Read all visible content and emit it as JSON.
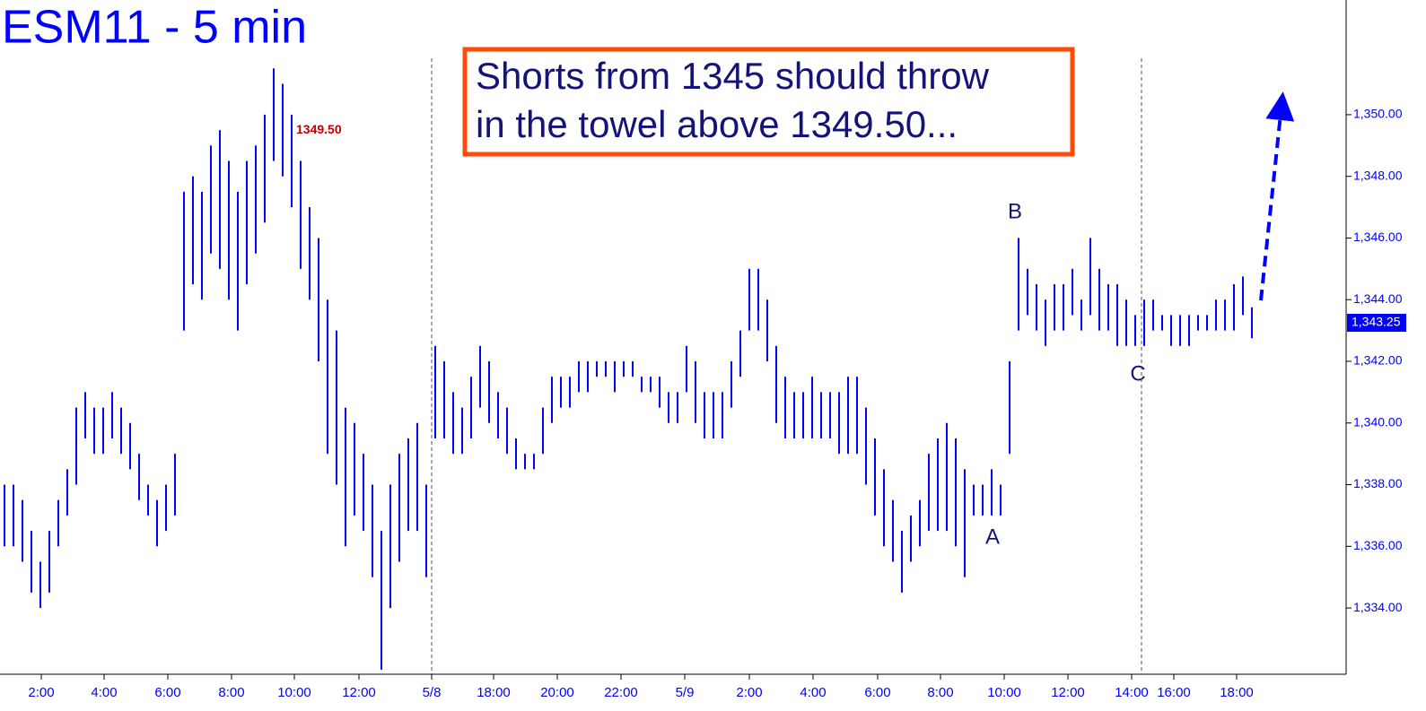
{
  "chart_data": {
    "type": "range_bar",
    "title": "ESM11 - 5 min",
    "callout": [
      "Shorts from 1345 should throw",
      "in the towel above 1349.50..."
    ],
    "price_label": {
      "value": 1349.5,
      "label": "1349.50"
    },
    "last_price": {
      "value": 1343.25,
      "label": "1,343.25"
    },
    "wave_labels": [
      "A",
      "B",
      "C"
    ],
    "color": "#0000ff",
    "high": [
      1338,
      1338,
      1337.5,
      1336.5,
      1335.5,
      1336.5,
      1337.5,
      1338.5,
      1340.5,
      1341,
      1340.5,
      1340.5,
      1341,
      1340.5,
      1340,
      1339,
      1338,
      1337.5,
      1338,
      1339,
      1347.5,
      1348,
      1347.5,
      1349,
      1349.5,
      1348.5,
      1347.5,
      1348.5,
      1349,
      1350,
      1351.5,
      1351,
      1350,
      1348.5,
      1347,
      1346,
      1344,
      1343,
      1340.5,
      1340,
      1339,
      1338,
      1336.5,
      1338,
      1339,
      1339.5,
      1340,
      1338,
      1342.5,
      1342,
      1341,
      1340.5,
      1341.5,
      1342.5,
      1342,
      1341,
      1340.5,
      1339.5,
      1339,
      1339,
      1340.5,
      1341.5,
      1341.5,
      1341.5,
      1342,
      1342,
      1342,
      1342,
      1342,
      1342,
      1342,
      1341.5,
      1341.5,
      1341.5,
      1341,
      1341,
      1342.5,
      1342,
      1341,
      1341,
      1341,
      1342,
      1343,
      1345,
      1345,
      1344,
      1342.5,
      1341.5,
      1341,
      1341,
      1341.5,
      1341,
      1341,
      1341,
      1341.5,
      1341.5,
      1340.5,
      1339.5,
      1338.5,
      1337.5,
      1336.5,
      1337,
      1337.5,
      1339,
      1339.5,
      1340,
      1339.5,
      1338.5,
      1338,
      1338,
      1338.5,
      1338,
      1342,
      1346,
      1345,
      1344.5,
      1344,
      1344.5,
      1344.5,
      1345,
      1344,
      1346,
      1345,
      1344.5,
      1344.5,
      1344,
      1343.5,
      1344,
      1344,
      1343.5,
      1343.5,
      1343.5,
      1343.5,
      1343.5,
      1343.5,
      1344,
      1344,
      1344.5,
      1344.75,
      1343.75
    ],
    "low": [
      1336,
      1336,
      1335.5,
      1334.5,
      1334,
      1334.5,
      1336,
      1337,
      1338,
      1339.5,
      1339,
      1339,
      1339.5,
      1339,
      1338.5,
      1337.5,
      1337,
      1336,
      1336.5,
      1337,
      1343,
      1344.5,
      1344,
      1345.5,
      1345,
      1344,
      1343,
      1344.5,
      1345.5,
      1346.5,
      1348.5,
      1348,
      1347,
      1345,
      1344,
      1342,
      1339,
      1338,
      1336,
      1337,
      1336.5,
      1335,
      1332,
      1334,
      1335.5,
      1336.5,
      1336.5,
      1335,
      1339.5,
      1339.5,
      1339,
      1339,
      1339.5,
      1340.5,
      1340,
      1339.5,
      1339,
      1338.5,
      1338.5,
      1338.5,
      1339,
      1340,
      1340.5,
      1340.5,
      1341,
      1341,
      1341.5,
      1341.5,
      1341,
      1341.5,
      1341.5,
      1341,
      1341,
      1340.5,
      1340,
      1340,
      1341,
      1340,
      1339.5,
      1339.5,
      1339.5,
      1340.5,
      1341.5,
      1343,
      1343,
      1342,
      1340,
      1339.5,
      1339.5,
      1339.5,
      1339.5,
      1339.5,
      1339.5,
      1339,
      1339,
      1339,
      1338,
      1337,
      1336,
      1335.5,
      1334.5,
      1335.5,
      1336,
      1336.5,
      1336.5,
      1336.5,
      1336,
      1335,
      1337,
      1337,
      1337,
      1337,
      1339,
      1343,
      1343.5,
      1343,
      1342.5,
      1343,
      1343,
      1343.5,
      1343,
      1343.5,
      1343,
      1343,
      1342.5,
      1342.5,
      1342.5,
      1342.5,
      1343,
      1343,
      1342.5,
      1342.5,
      1342.5,
      1343,
      1343,
      1343,
      1343,
      1343,
      1343.5,
      1342.75
    ],
    "xlim": [
      -0.5,
      149.5
    ],
    "xticks": [
      {
        "value": 4.1,
        "label": "2:00"
      },
      {
        "value": 11.1,
        "label": "4:00"
      },
      {
        "value": 18.2,
        "label": "6:00"
      },
      {
        "value": 25.3,
        "label": "8:00"
      },
      {
        "value": 32.3,
        "label": "10:00"
      },
      {
        "value": 39.5,
        "label": "12:00"
      },
      {
        "value": 47.6,
        "label": "5/8"
      },
      {
        "value": 54.5,
        "label": "18:00"
      },
      {
        "value": 61.6,
        "label": "20:00"
      },
      {
        "value": 68.7,
        "label": "22:00"
      },
      {
        "value": 75.8,
        "label": "5/9"
      },
      {
        "value": 83,
        "label": "2:00"
      },
      {
        "value": 90.1,
        "label": "4:00"
      },
      {
        "value": 97.3,
        "label": "6:00"
      },
      {
        "value": 104.3,
        "label": "8:00"
      },
      {
        "value": 111.4,
        "label": "10:00"
      },
      {
        "value": 118.5,
        "label": "12:00"
      },
      {
        "value": 125.6,
        "label": "14:00"
      },
      {
        "value": 130.3,
        "label": "16:00"
      },
      {
        "value": 137.3,
        "label": "18:00"
      }
    ],
    "session_breaks": [
      47.6,
      126.7
    ],
    "ylim": [
      1331.85,
      1353.72
    ],
    "yticks": [
      {
        "value": 1334,
        "label": "1,334.00"
      },
      {
        "value": 1336,
        "label": "1,336.00"
      },
      {
        "value": 1338,
        "label": "1,338.00"
      },
      {
        "value": 1340,
        "label": "1,340.00"
      },
      {
        "value": 1342,
        "label": "1,342.00"
      },
      {
        "value": 1344,
        "label": "1,344.00"
      },
      {
        "value": 1346,
        "label": "1,346.00"
      },
      {
        "value": 1348,
        "label": "1,348.00"
      },
      {
        "value": 1350,
        "label": "1,350.00"
      }
    ]
  }
}
